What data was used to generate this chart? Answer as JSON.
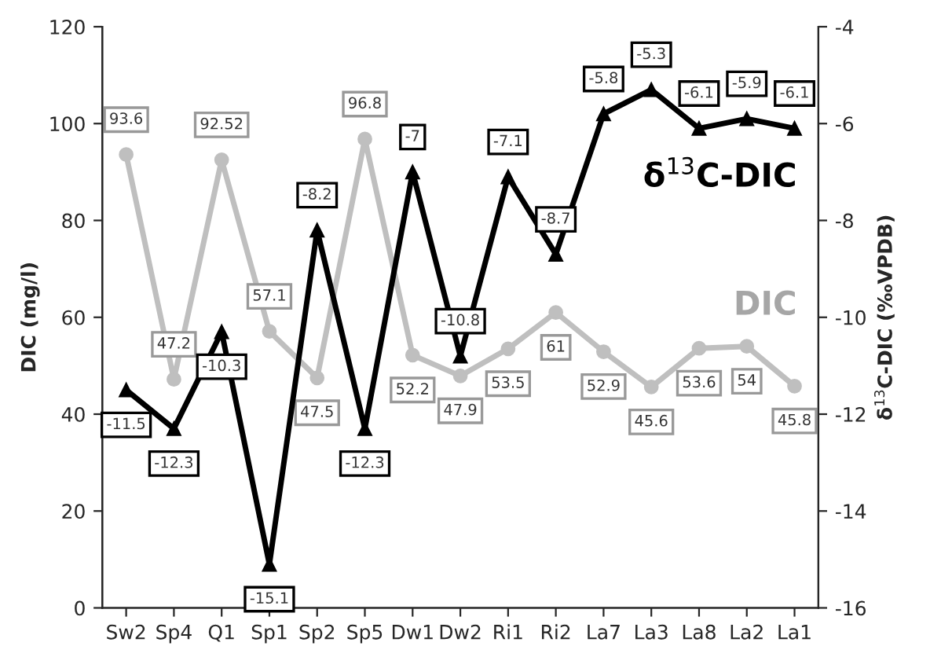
{
  "chart_data": {
    "type": "line",
    "ylabel": "DIC (mg/l)",
    "y2label": "δ$^{13}$C-DIC (‰VPDB)",
    "categories": [
      "Sw2",
      "Sp4",
      "Q1",
      "Sp1",
      "Sp2",
      "Sp5",
      "Dw1",
      "Dw2",
      "Ri1",
      "Ri2",
      "La7",
      "La3",
      "La8",
      "La2",
      "La1"
    ],
    "series": [
      {
        "name": "DIC",
        "color": "#bfbfbf",
        "marker": "circle",
        "values": [
          93.6,
          47.2,
          92.52,
          57.1,
          47.5,
          96.8,
          52.2,
          47.9,
          53.5,
          61,
          52.9,
          45.6,
          53.6,
          54,
          45.8
        ]
      },
      {
        "name": "δ$^{13}$C-DIC",
        "color": "#000000",
        "marker": "triangle",
        "axis": "y2",
        "values": [
          -11.5,
          -12.3,
          -10.3,
          -15.1,
          -8.2,
          -12.3,
          -7,
          -10.8,
          -7.1,
          -8.7,
          -5.8,
          -5.3,
          -6.1,
          -5.9,
          -6.1
        ]
      }
    ],
    "ylim": [
      0,
      120
    ],
    "yticks": [
      0,
      20,
      40,
      60,
      80,
      100,
      120
    ],
    "y2lim": [
      -16,
      -4
    ],
    "y2ticks": [
      -16,
      -14,
      -12,
      -10,
      -8,
      -6,
      -4
    ],
    "data_labels": true,
    "grid": false,
    "legend": "right"
  }
}
